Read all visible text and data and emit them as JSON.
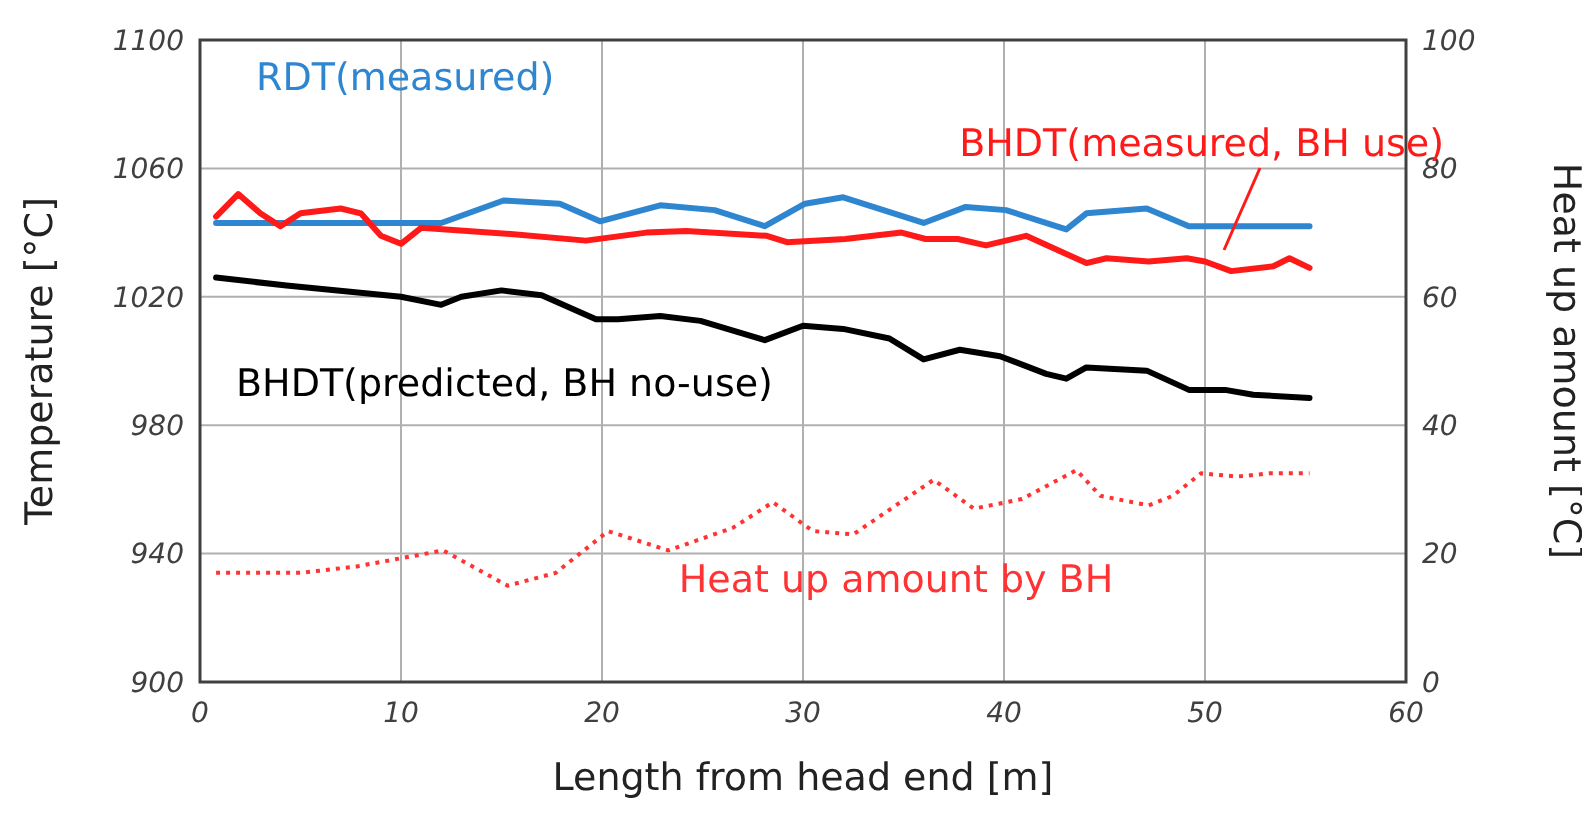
{
  "chart_data": {
    "type": "line",
    "xlabel": "Length from head end [m]",
    "ylabel": "Temperature [°C]",
    "y2label": "Heat up amount [°C]",
    "xlim": [
      0,
      60
    ],
    "xticks": [
      0,
      10,
      20,
      30,
      40,
      50,
      60
    ],
    "ylim": [
      900,
      1100
    ],
    "yticks": [
      900,
      940,
      980,
      1020,
      1060,
      1100
    ],
    "y2lim": [
      0,
      100
    ],
    "y2ticks": [
      0,
      20,
      40,
      60,
      80,
      100
    ],
    "grid": true,
    "series": [
      {
        "name": "RDT(measured)",
        "color": "#2f86d0",
        "x": [
          0.8,
          12,
          15.1,
          17.9,
          19.9,
          22.9,
          25.6,
          28.1,
          30.1,
          32,
          36,
          38.1,
          40.1,
          43.1,
          44.1,
          47.1,
          49.2,
          55.2
        ],
        "values": [
          1043,
          1043,
          1050,
          1049,
          1043.5,
          1048.5,
          1047,
          1042,
          1049,
          1051,
          1043,
          1048,
          1047,
          1041,
          1046,
          1047.5,
          1042,
          1042
        ]
      },
      {
        "name": "BHDT(measured, BH use)",
        "color": "#ff1a1a",
        "x": [
          0.8,
          1.9,
          3,
          4,
          5,
          7,
          8,
          9,
          10,
          11,
          15.6,
          19.2,
          22.2,
          24.2,
          28.2,
          29.2,
          32.1,
          34.9,
          36.1,
          37.7,
          39.1,
          41.1,
          44.1,
          45.1,
          47.2,
          49.1,
          50,
          51.3,
          53.4,
          54.2,
          55.2
        ],
        "values": [
          1045,
          1052,
          1046,
          1042,
          1046,
          1047.5,
          1046,
          1039,
          1036.5,
          1041.5,
          1039.5,
          1037.5,
          1040,
          1040.5,
          1039,
          1037,
          1038,
          1040,
          1038,
          1038,
          1036,
          1039,
          1030.5,
          1032,
          1031,
          1032,
          1031,
          1028,
          1029.5,
          1032,
          1029
        ]
      },
      {
        "name": "BHDT(predicted, BH no-use)",
        "color": "#000000",
        "x": [
          0.8,
          4.3,
          7.6,
          10,
          12,
          13,
          15,
          17,
          19.7,
          20.8,
          22.9,
          24.9,
          28.1,
          30,
          32,
          34.3,
          36,
          37.8,
          39.8,
          42.1,
          43.1,
          44.1,
          47.1,
          49.2,
          51,
          52.4,
          55.2
        ],
        "values": [
          1026,
          1023.5,
          1021.5,
          1020,
          1017.5,
          1020,
          1022,
          1020.5,
          1013,
          1013,
          1014,
          1012.5,
          1006.5,
          1011,
          1010,
          1007,
          1000.5,
          1003.5,
          1001.5,
          996,
          994.5,
          998,
          997,
          991,
          991,
          989.5,
          988.5
        ]
      },
      {
        "name": "Heat up amount by BH",
        "color": "#ff3333",
        "axis": "y2",
        "line_style": "dotted",
        "x": [
          0.8,
          5,
          7.8,
          12.1,
          15.3,
          17.7,
          20.3,
          23.3,
          26.5,
          28.5,
          30.5,
          32.5,
          36.5,
          38.5,
          40.9,
          43.6,
          44.8,
          47.2,
          48.4,
          49.8,
          51.6,
          53.2,
          55.2
        ],
        "values": [
          17,
          17,
          18,
          20.5,
          15,
          17,
          23.5,
          20.5,
          24,
          28,
          23.5,
          23,
          31.5,
          27,
          28.5,
          33,
          29,
          27.5,
          29,
          32.5,
          32,
          32.5,
          32.5
        ]
      }
    ]
  }
}
